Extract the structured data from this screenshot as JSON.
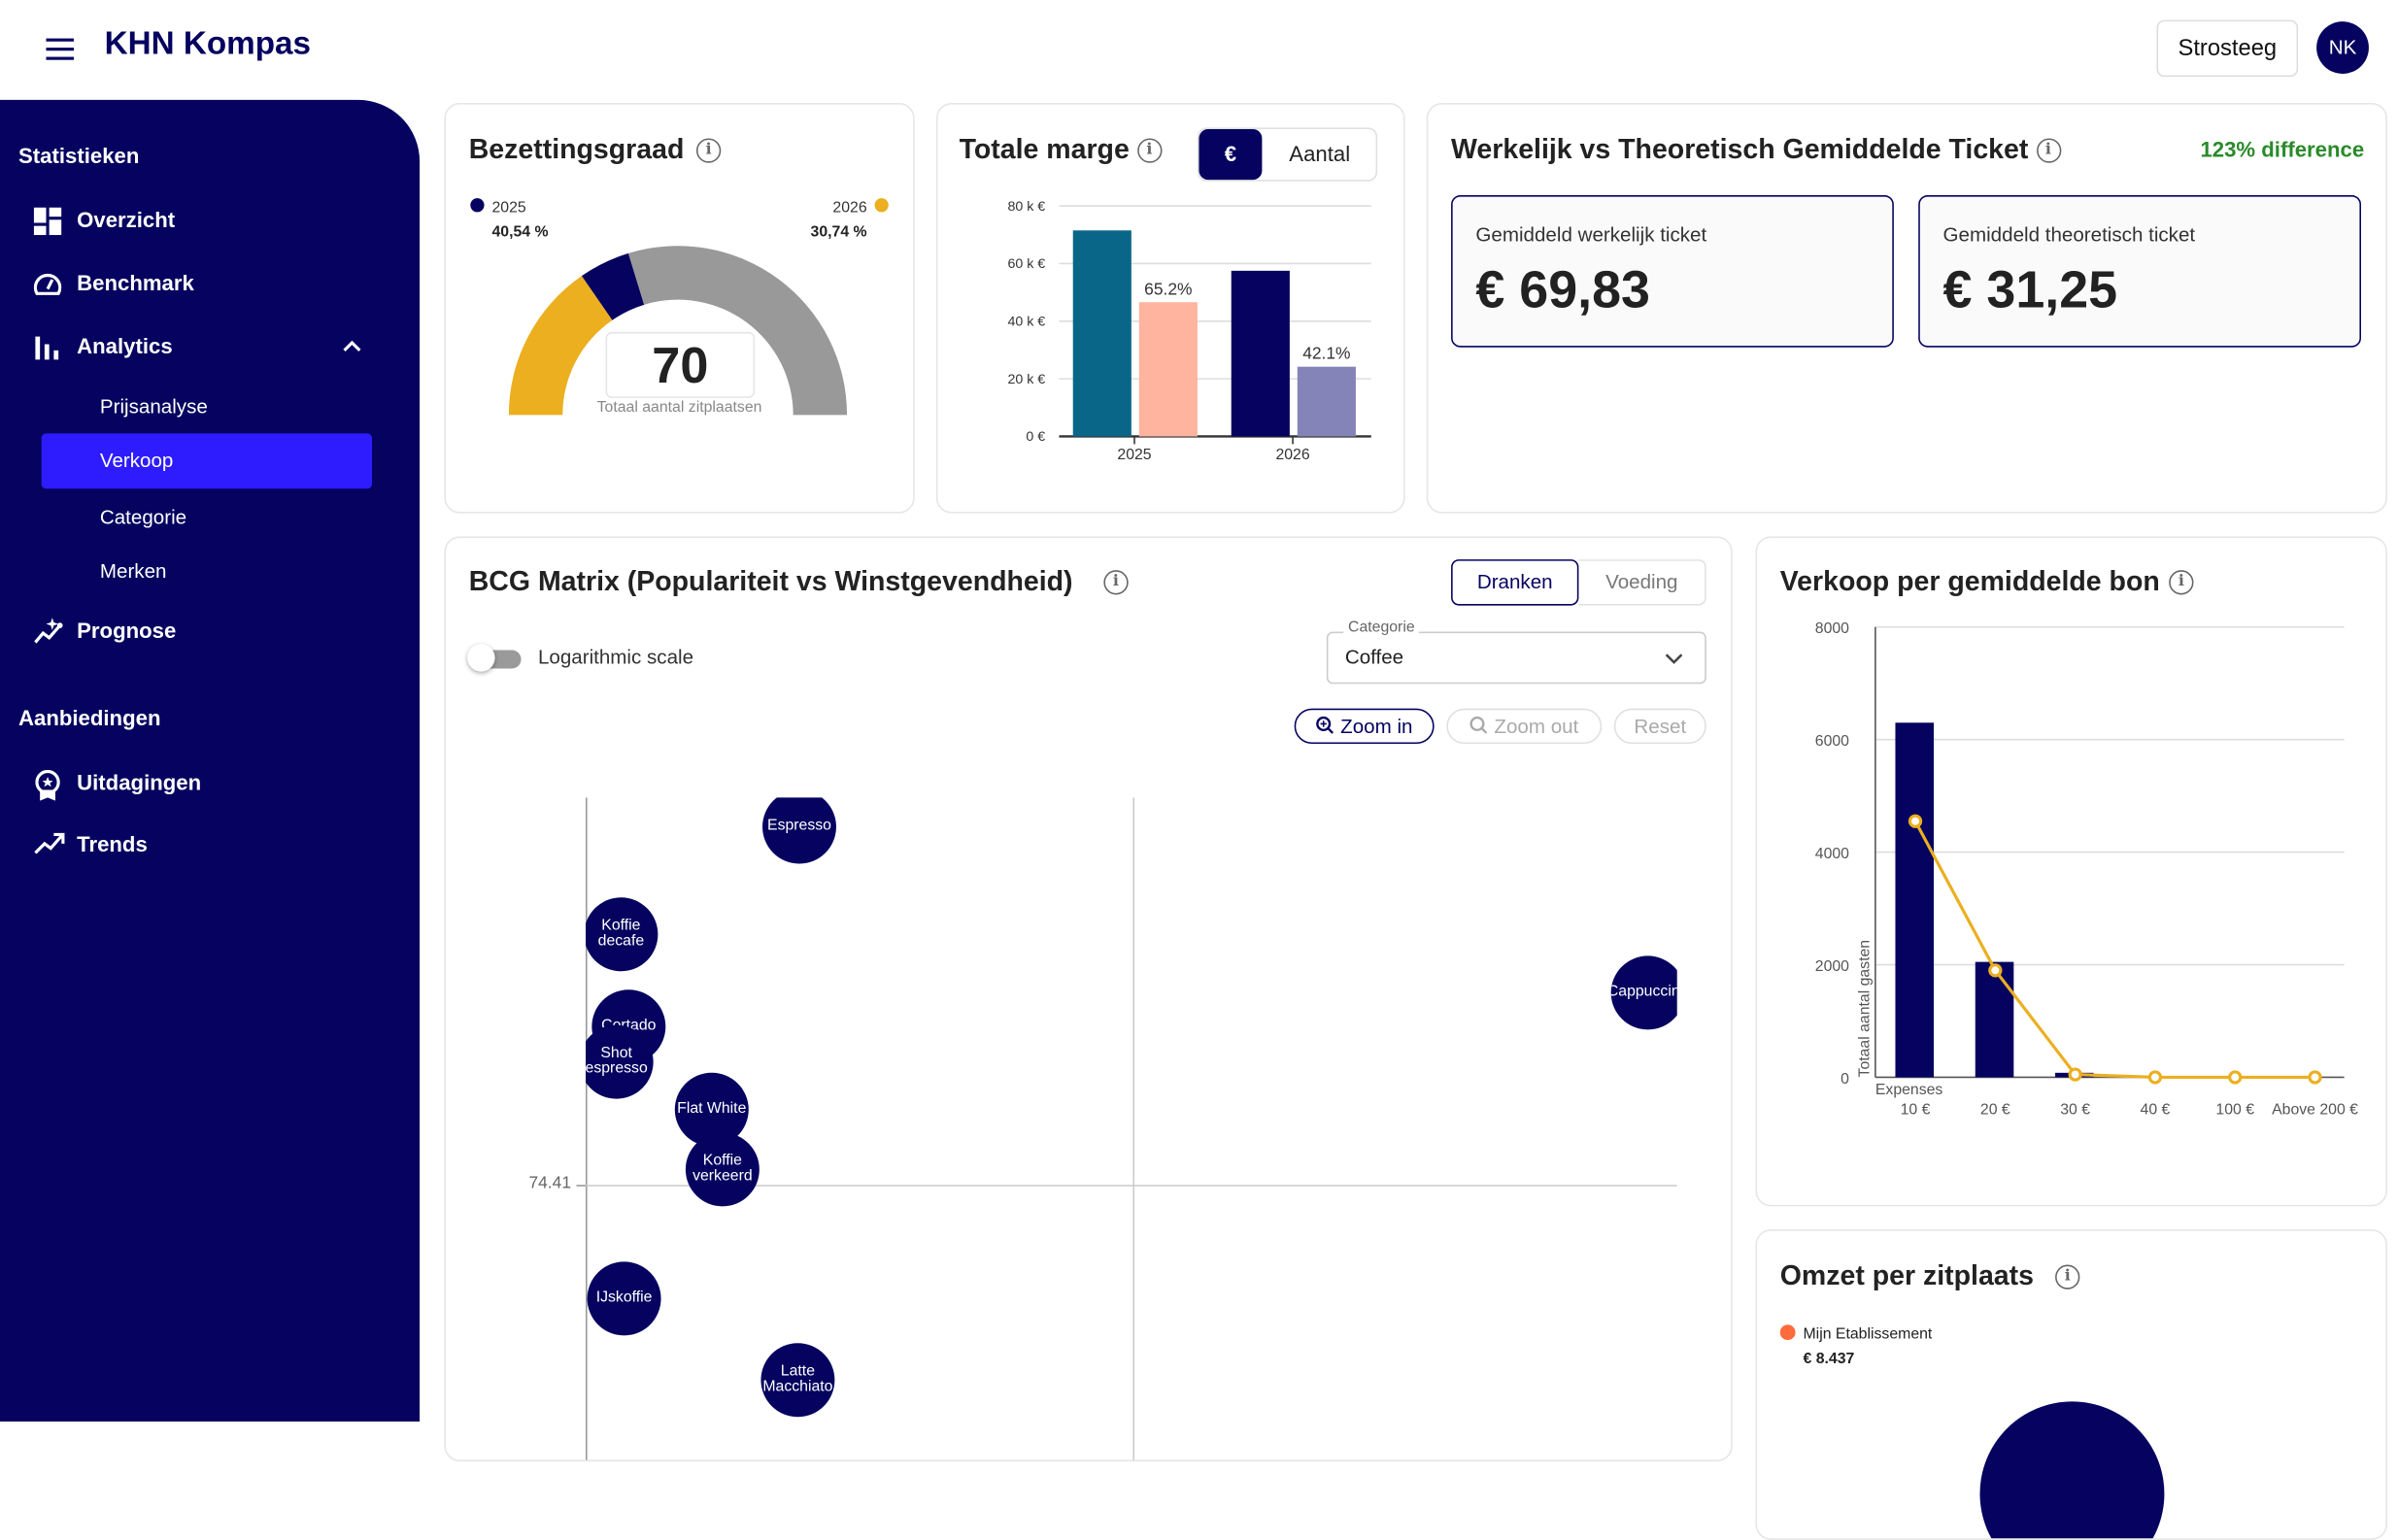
{
  "header": {
    "app_title": "KHN Kompas",
    "location_button": "Strosteeg",
    "avatar_initials": "NK"
  },
  "sidebar": {
    "section1": "Statistieken",
    "items": [
      {
        "label": "Overzicht",
        "icon": "dashboard-icon"
      },
      {
        "label": "Benchmark",
        "icon": "speedometer-icon"
      },
      {
        "label": "Analytics",
        "icon": "bar-chart-icon",
        "expanded": true
      }
    ],
    "analytics_sub": [
      {
        "label": "Prijsanalyse"
      },
      {
        "label": "Verkoop",
        "active": true
      },
      {
        "label": "Categorie"
      },
      {
        "label": "Merken"
      }
    ],
    "prognose": "Prognose",
    "section2": "Aanbiedingen",
    "items2": [
      {
        "label": "Uitdagingen",
        "icon": "award-icon"
      },
      {
        "label": "Trends",
        "icon": "trending-up-icon"
      }
    ],
    "colors": {
      "bg": "#05035f",
      "active": "#2e1cff"
    }
  },
  "occupancy": {
    "title": "Bezettingsgraad",
    "legend": [
      {
        "year": "2025",
        "value": "40,54 %",
        "color": "#05035f"
      },
      {
        "year": "2026",
        "value": "30,74 %",
        "color": "#ebaf20"
      }
    ],
    "total": "70",
    "total_label": "Totaal aantal zitplaatsen",
    "gauge_percent_2025": 40.54,
    "gauge_percent_2026": 30.74
  },
  "margin": {
    "title": "Totale marge",
    "toggle": [
      "€",
      "Aantal"
    ],
    "toggle_selected": "€"
  },
  "ticket": {
    "title": "Werkelijk vs Theoretisch Gemiddelde Ticket",
    "difference": "123% difference",
    "actual_label": "Gemiddeld werkelijk ticket",
    "actual_value": "€ 69,83",
    "theoretical_label": "Gemiddeld theoretisch ticket",
    "theoretical_value": "€ 31,25"
  },
  "bcg": {
    "title": "BCG Matrix (Populariteit vs Winstgevendheid)",
    "tabs": [
      "Dranken",
      "Voeding"
    ],
    "tab_selected": "Dranken",
    "log_label": "Logarithmic scale",
    "log_on": false,
    "category_label": "Categorie",
    "category_value": "Coffee",
    "zoom_in": "Zoom in",
    "zoom_out": "Zoom out",
    "reset": "Reset"
  },
  "bon": {
    "title": "Verkoop per gemiddelde bon"
  },
  "omzet": {
    "title": "Omzet per zitplaats",
    "legend_name": "Mijn Etablissement",
    "legend_value": "€ 8.437",
    "legend_color": "#ff6b3d"
  },
  "chart_data": [
    {
      "type": "bar",
      "id": "totale-marge",
      "categories": [
        "2025",
        "2026"
      ],
      "series": [
        {
          "values": [
            71500,
            57500
          ],
          "colors": [
            "#0a6688",
            "#05035f"
          ]
        },
        {
          "values": [
            46600,
            24200
          ],
          "labels": [
            "65.2%",
            "42.1%"
          ],
          "colors": [
            "#ffb4a0",
            "#8584b8"
          ]
        }
      ],
      "yticks": [
        "0 €",
        "20 k €",
        "40 k €",
        "60 k €",
        "80 k €"
      ],
      "ylim": [
        0,
        80000
      ],
      "grid": true
    },
    {
      "type": "scatter",
      "id": "bcg-matrix",
      "y_threshold_label": "74.41",
      "points": [
        "Espresso",
        "Koffie decafe",
        "Cortado",
        "Shot espresso",
        "Flat White",
        "Koffie verkeerd",
        "Cappuccino",
        "IJskoffie",
        "Latte Macchiato"
      ]
    },
    {
      "type": "bar",
      "id": "verkoop-per-bon",
      "categories": [
        "10 €",
        "20 €",
        "30 €",
        "40 €",
        "100 €",
        "Above 200 €"
      ],
      "xlabel": "Expenses",
      "ylabel": "Totaal aantal gasten",
      "bars": [
        6300,
        2050,
        80,
        0,
        0,
        0
      ],
      "line": [
        4550,
        1900,
        50,
        0,
        0,
        0
      ],
      "bar_color": "#05035f",
      "line_color": "#ebaf20",
      "yticks": [
        "0",
        "2000",
        "4000",
        "6000",
        "8000"
      ],
      "ylim": [
        0,
        8000
      ],
      "grid": true
    }
  ]
}
